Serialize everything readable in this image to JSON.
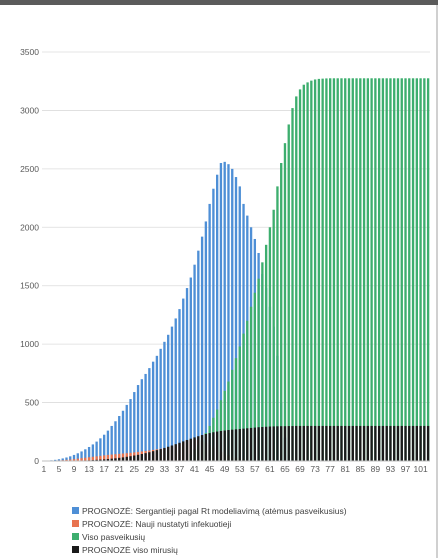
{
  "chart_data": {
    "type": "bar",
    "title": "",
    "xlabel": "",
    "ylabel": "",
    "ylim": [
      0,
      3500
    ],
    "yticks": [
      0,
      500,
      1000,
      1500,
      2000,
      2500,
      3000,
      3500
    ],
    "xtick_labels": [
      "1",
      "5",
      "9",
      "13",
      "17",
      "21",
      "25",
      "29",
      "33",
      "37",
      "41",
      "45",
      "49",
      "53",
      "57",
      "61",
      "65",
      "69",
      "73",
      "77",
      "81",
      "85",
      "89",
      "93",
      "97",
      "101"
    ],
    "x_start": 1,
    "x_end": 103,
    "grid": "horizontal",
    "legend_position": "bottom",
    "series": [
      {
        "name": "PROGNOZĖ: Sergantieji pagal Rt modeliavimą (atėmus pasveikusius)",
        "color": "#4e8fd6",
        "values": [
          0,
          3,
          6,
          10,
          15,
          22,
          30,
          40,
          52,
          66,
          82,
          100,
          120,
          142,
          166,
          194,
          225,
          260,
          300,
          340,
          385,
          430,
          480,
          530,
          590,
          650,
          700,
          745,
          795,
          850,
          900,
          960,
          1020,
          1080,
          1150,
          1220,
          1300,
          1390,
          1480,
          1570,
          1680,
          1800,
          1920,
          2050,
          2200,
          2330,
          2450,
          2550,
          2560,
          2540,
          2500,
          2430,
          2350,
          2200,
          2100,
          2000,
          1900,
          1780,
          1600,
          1480,
          1320,
          1150,
          900,
          500,
          200,
          50,
          10,
          0,
          0,
          0,
          0,
          0,
          0,
          0,
          0,
          0,
          0,
          0,
          0,
          0,
          0,
          0,
          0,
          0,
          0,
          0,
          0,
          0,
          0,
          0,
          0,
          0,
          0,
          0,
          0,
          0,
          0,
          0,
          0,
          0,
          0,
          0,
          0
        ]
      },
      {
        "name": "PROGNOZĖ: Nauji nustatyti infekuotieji",
        "color": "#e8734f",
        "values": [
          0,
          1,
          2,
          3,
          5,
          7,
          10,
          13,
          16,
          20,
          24,
          28,
          32,
          36,
          40,
          44,
          48,
          52,
          55,
          58,
          61,
          64,
          67,
          70,
          74,
          78,
          82,
          86,
          90,
          95,
          100,
          105,
          110,
          118,
          126,
          136,
          148,
          160,
          172,
          180,
          185,
          180,
          170,
          155,
          135,
          115,
          95,
          78,
          64,
          50,
          38,
          28,
          20,
          14,
          9,
          6,
          4,
          3,
          2,
          1,
          1,
          0,
          0,
          0,
          0,
          0,
          0,
          0,
          0,
          0,
          0,
          0,
          0,
          0,
          0,
          0,
          0,
          0,
          0,
          0,
          0,
          0,
          0,
          0,
          0,
          0,
          0,
          0,
          0,
          0,
          0,
          0,
          0,
          0,
          0,
          0,
          0,
          0,
          0,
          0,
          0,
          0,
          0
        ]
      },
      {
        "name": "Viso pasveikusių",
        "color": "#3dae6e",
        "values": [
          0,
          0,
          0,
          0,
          0,
          0,
          0,
          0,
          0,
          0,
          0,
          0,
          0,
          0,
          0,
          0,
          0,
          0,
          0,
          0,
          0,
          0,
          0,
          0,
          0,
          0,
          0,
          0,
          0,
          0,
          0,
          0,
          0,
          0,
          0,
          0,
          0,
          0,
          0,
          60,
          100,
          140,
          180,
          240,
          300,
          370,
          440,
          520,
          600,
          680,
          780,
          880,
          980,
          1090,
          1200,
          1320,
          1440,
          1560,
          1700,
          1850,
          2000,
          2150,
          2350,
          2550,
          2720,
          2880,
          3020,
          3120,
          3180,
          3220,
          3240,
          3255,
          3265,
          3270,
          3272,
          3274,
          3275,
          3275,
          3275,
          3275,
          3275,
          3275,
          3275,
          3275,
          3275,
          3275,
          3275,
          3275,
          3275,
          3275,
          3275,
          3275,
          3275,
          3275,
          3275,
          3275,
          3275,
          3275,
          3275,
          3275,
          3275,
          3275,
          3275
        ]
      },
      {
        "name": "PROGNOZĖ viso mirusių",
        "color": "#1a1a1a",
        "values": [
          0,
          0,
          0,
          0,
          0,
          1,
          1,
          2,
          2,
          3,
          4,
          5,
          6,
          8,
          10,
          12,
          14,
          17,
          20,
          23,
          27,
          31,
          36,
          41,
          47,
          53,
          60,
          67,
          75,
          84,
          93,
          102,
          112,
          122,
          133,
          144,
          156,
          168,
          180,
          191,
          202,
          212,
          222,
          231,
          239,
          246,
          252,
          257,
          261,
          265,
          268,
          271,
          274,
          277,
          280,
          283,
          286,
          289,
          291,
          293,
          295,
          296,
          297,
          298,
          298,
          299,
          299,
          300,
          300,
          300,
          300,
          300,
          300,
          300,
          300,
          300,
          300,
          300,
          300,
          300,
          300,
          300,
          300,
          300,
          300,
          300,
          300,
          300,
          300,
          300,
          300,
          300,
          300,
          300,
          300,
          300,
          300,
          300,
          300,
          300,
          300,
          300,
          300
        ]
      }
    ]
  }
}
